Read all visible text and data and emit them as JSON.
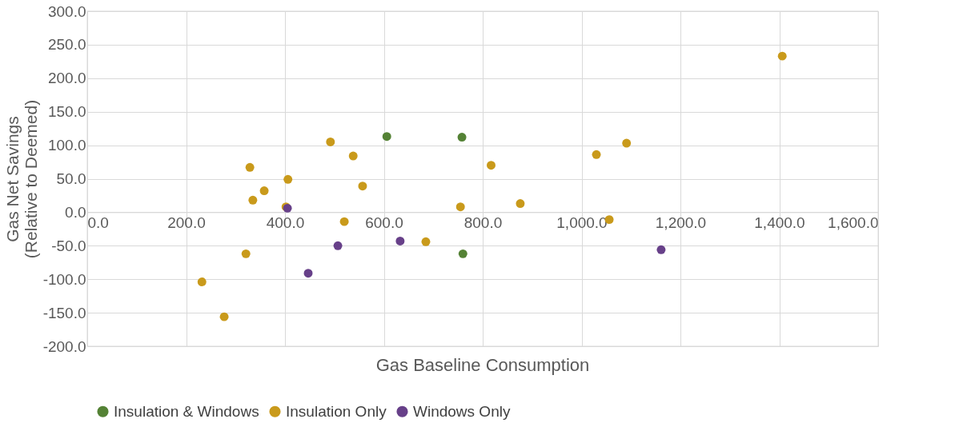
{
  "chart_data": {
    "type": "scatter",
    "xlabel": "Gas Baseline Consumption",
    "ylabel": "Gas Net Savings (Relative to Deemed)",
    "xlim": [
      0,
      1600
    ],
    "xticks": [
      {
        "value": 0,
        "label": "0.0"
      },
      {
        "value": 200,
        "label": "200.0"
      },
      {
        "value": 400,
        "label": "400.0"
      },
      {
        "value": 600,
        "label": "600.0"
      },
      {
        "value": 800,
        "label": "800.0"
      },
      {
        "value": 1000,
        "label": "1,000.0"
      },
      {
        "value": 1200,
        "label": "1,200.0"
      },
      {
        "value": 1400,
        "label": "1,400.0"
      },
      {
        "value": 1600,
        "label": "1,600.0"
      }
    ],
    "ylim": [
      -200,
      300
    ],
    "yticks": [
      {
        "value": -200,
        "label": "-200.0"
      },
      {
        "value": -150,
        "label": "-150.0"
      },
      {
        "value": -100,
        "label": "-100.0"
      },
      {
        "value": -50,
        "label": "-50.0"
      },
      {
        "value": 0,
        "label": "0.0"
      },
      {
        "value": 50,
        "label": "50.0"
      },
      {
        "value": 100,
        "label": "100.0"
      },
      {
        "value": 150,
        "label": "150.0"
      },
      {
        "value": 200,
        "label": "200.0"
      },
      {
        "value": 250,
        "label": "250.0"
      },
      {
        "value": 300,
        "label": "300.0"
      }
    ],
    "grid": true,
    "legend": "bottom",
    "marker": "circle",
    "series": [
      {
        "name": "Insulation & Windows",
        "color": "#548235",
        "x": [
          606,
          758,
          760
        ],
        "values": [
          113,
          112,
          -62
        ]
      },
      {
        "name": "Insulation Only",
        "color": "#c99a1b",
        "x": [
          232,
          277,
          321,
          329,
          335,
          358,
          402,
          406,
          492,
          538,
          520,
          557,
          685,
          755,
          817,
          876,
          1030,
          1056,
          1091,
          1406
        ],
        "values": [
          -104,
          -156,
          -62,
          67,
          18,
          32,
          8,
          49,
          105,
          84,
          -14,
          39,
          -44,
          8,
          70,
          13,
          86,
          -11,
          103,
          233
        ]
      },
      {
        "name": "Windows Only",
        "color": "#674089",
        "x": [
          405,
          447,
          507,
          633,
          1161
        ],
        "values": [
          6,
          -91,
          -50,
          -43,
          -56
        ]
      }
    ]
  }
}
